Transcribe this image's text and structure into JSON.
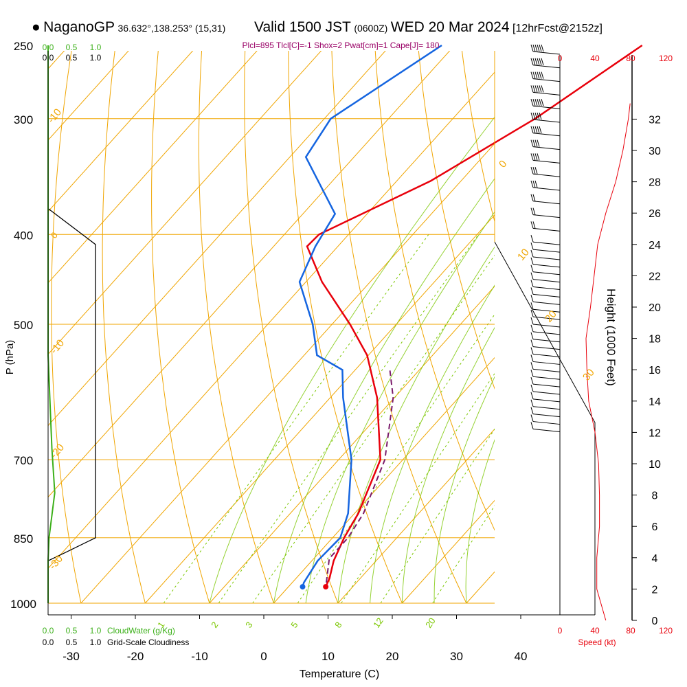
{
  "header": {
    "station": "NaganoGP",
    "coords": "36.632°,138.253° (15,31)",
    "valid": "Valid 1500 JST",
    "zulu": "(0600Z)",
    "date": "WED 20 Mar 2024",
    "forecast": "[12hrFcst@2152z]"
  },
  "indices": "Plcl=895 Tlcl[C]=-1 Shox=2 Pwat[cm]=1 Cape[J]= 180",
  "colors": {
    "temperature": "#e8000b",
    "dewpoint": "#1565e0",
    "parcel": "#7a1a6a",
    "isobar": "#f0a500",
    "mixing_ratio": "#7bc700",
    "cloudwater": "#3cb01a",
    "speed": "#e8000b"
  },
  "chart_data": {
    "type": "line",
    "title": "Skew-T log-P sounding",
    "xlabel": "Temperature (C)",
    "ylabel": "P (hPa)",
    "right_ylabel": "Height (1000 Feet)",
    "pressure_ticks": [
      250,
      300,
      400,
      500,
      700,
      850,
      1000
    ],
    "temp_ticks": [
      -30,
      -20,
      -10,
      0,
      10,
      20,
      30,
      40
    ],
    "height_ticks": [
      0,
      2,
      4,
      6,
      8,
      10,
      12,
      14,
      16,
      18,
      20,
      22,
      24,
      26,
      28,
      30,
      32
    ],
    "isotherm_labels": [
      "-10",
      "0",
      "10",
      "20",
      "30",
      "-10",
      "-20",
      "-30"
    ],
    "mixing_ratio_labels": [
      "1",
      "2",
      "3",
      "5",
      "8",
      "12",
      "20"
    ],
    "series": [
      {
        "name": "temperature",
        "points": [
          [
            250,
            -20.8
          ],
          [
            300,
            -27.2
          ],
          [
            350,
            -34.7
          ],
          [
            400,
            -44.6
          ],
          [
            412,
            -44.8
          ],
          [
            450,
            -37.5
          ],
          [
            500,
            -27.2
          ],
          [
            540,
            -20.2
          ],
          [
            600,
            -12.7
          ],
          [
            700,
            -3.5
          ],
          [
            800,
            0.6
          ],
          [
            850,
            1.8
          ],
          [
            900,
            3.4
          ],
          [
            940,
            5.2
          ],
          [
            960,
            5.8
          ]
        ]
      },
      {
        "name": "dewpoint",
        "points": [
          [
            250,
            -52
          ],
          [
            300,
            -59
          ],
          [
            330,
            -57.5
          ],
          [
            380,
            -45
          ],
          [
            412,
            -43.5
          ],
          [
            450,
            -41
          ],
          [
            500,
            -33
          ],
          [
            540,
            -28
          ],
          [
            560,
            -22
          ],
          [
            600,
            -18
          ],
          [
            700,
            -8
          ],
          [
            800,
            -1
          ],
          [
            850,
            1.2
          ],
          [
            900,
            0.9
          ],
          [
            950,
            1.8
          ],
          [
            960,
            2.2
          ]
        ]
      },
      {
        "name": "parcel",
        "points": [
          [
            950,
            5.3
          ],
          [
            895,
            2.4
          ],
          [
            850,
            2.4
          ],
          [
            800,
            1.4
          ],
          [
            700,
            -2.8
          ],
          [
            600,
            -10.2
          ],
          [
            560,
            -14.6
          ]
        ]
      }
    ],
    "cloudwater": {
      "label": "CloudWater (g/Kg)",
      "ticks": [
        "0.0",
        "0.5",
        "1.0"
      ],
      "values": [
        [
          250,
          0
        ],
        [
          400,
          0
        ],
        [
          540,
          0
        ],
        [
          680,
          0.08
        ],
        [
          760,
          0.14
        ],
        [
          850,
          0.02
        ],
        [
          900,
          0
        ],
        [
          1000,
          0
        ]
      ]
    },
    "cloudiness": {
      "label": "Grid-Scale Cloudiness",
      "ticks": [
        "0.0",
        "0.5",
        "1.0"
      ],
      "values": [
        [
          375,
          0
        ],
        [
          410,
          1.0
        ],
        [
          850,
          1.0
        ],
        [
          880,
          0.4
        ],
        [
          900,
          0
        ],
        [
          1000,
          0
        ]
      ]
    },
    "wind_speed": {
      "label": "Speed (kt)",
      "ticks": [
        "0",
        "40",
        "80",
        "120"
      ],
      "values": [
        [
          0,
          51
        ],
        [
          2,
          41
        ],
        [
          4,
          41
        ],
        [
          6,
          44
        ],
        [
          8,
          44
        ],
        [
          10,
          43
        ],
        [
          12,
          39
        ],
        [
          14,
          32
        ],
        [
          16,
          30
        ],
        [
          18,
          29
        ],
        [
          20,
          34
        ],
        [
          22,
          38
        ],
        [
          24,
          42
        ],
        [
          26,
          51
        ],
        [
          28,
          62
        ],
        [
          30,
          70
        ],
        [
          32,
          76
        ],
        [
          33,
          78
        ]
      ]
    },
    "wind_barbs_knots": [
      75,
      70,
      65,
      60,
      55,
      50,
      45,
      40,
      35,
      30,
      25,
      20,
      20,
      15,
      10,
      10,
      10,
      10,
      10,
      10,
      10,
      10,
      10,
      10,
      10,
      10,
      10,
      10,
      10,
      10,
      10,
      10,
      10,
      10,
      10,
      10,
      10,
      10,
      10,
      10
    ]
  }
}
